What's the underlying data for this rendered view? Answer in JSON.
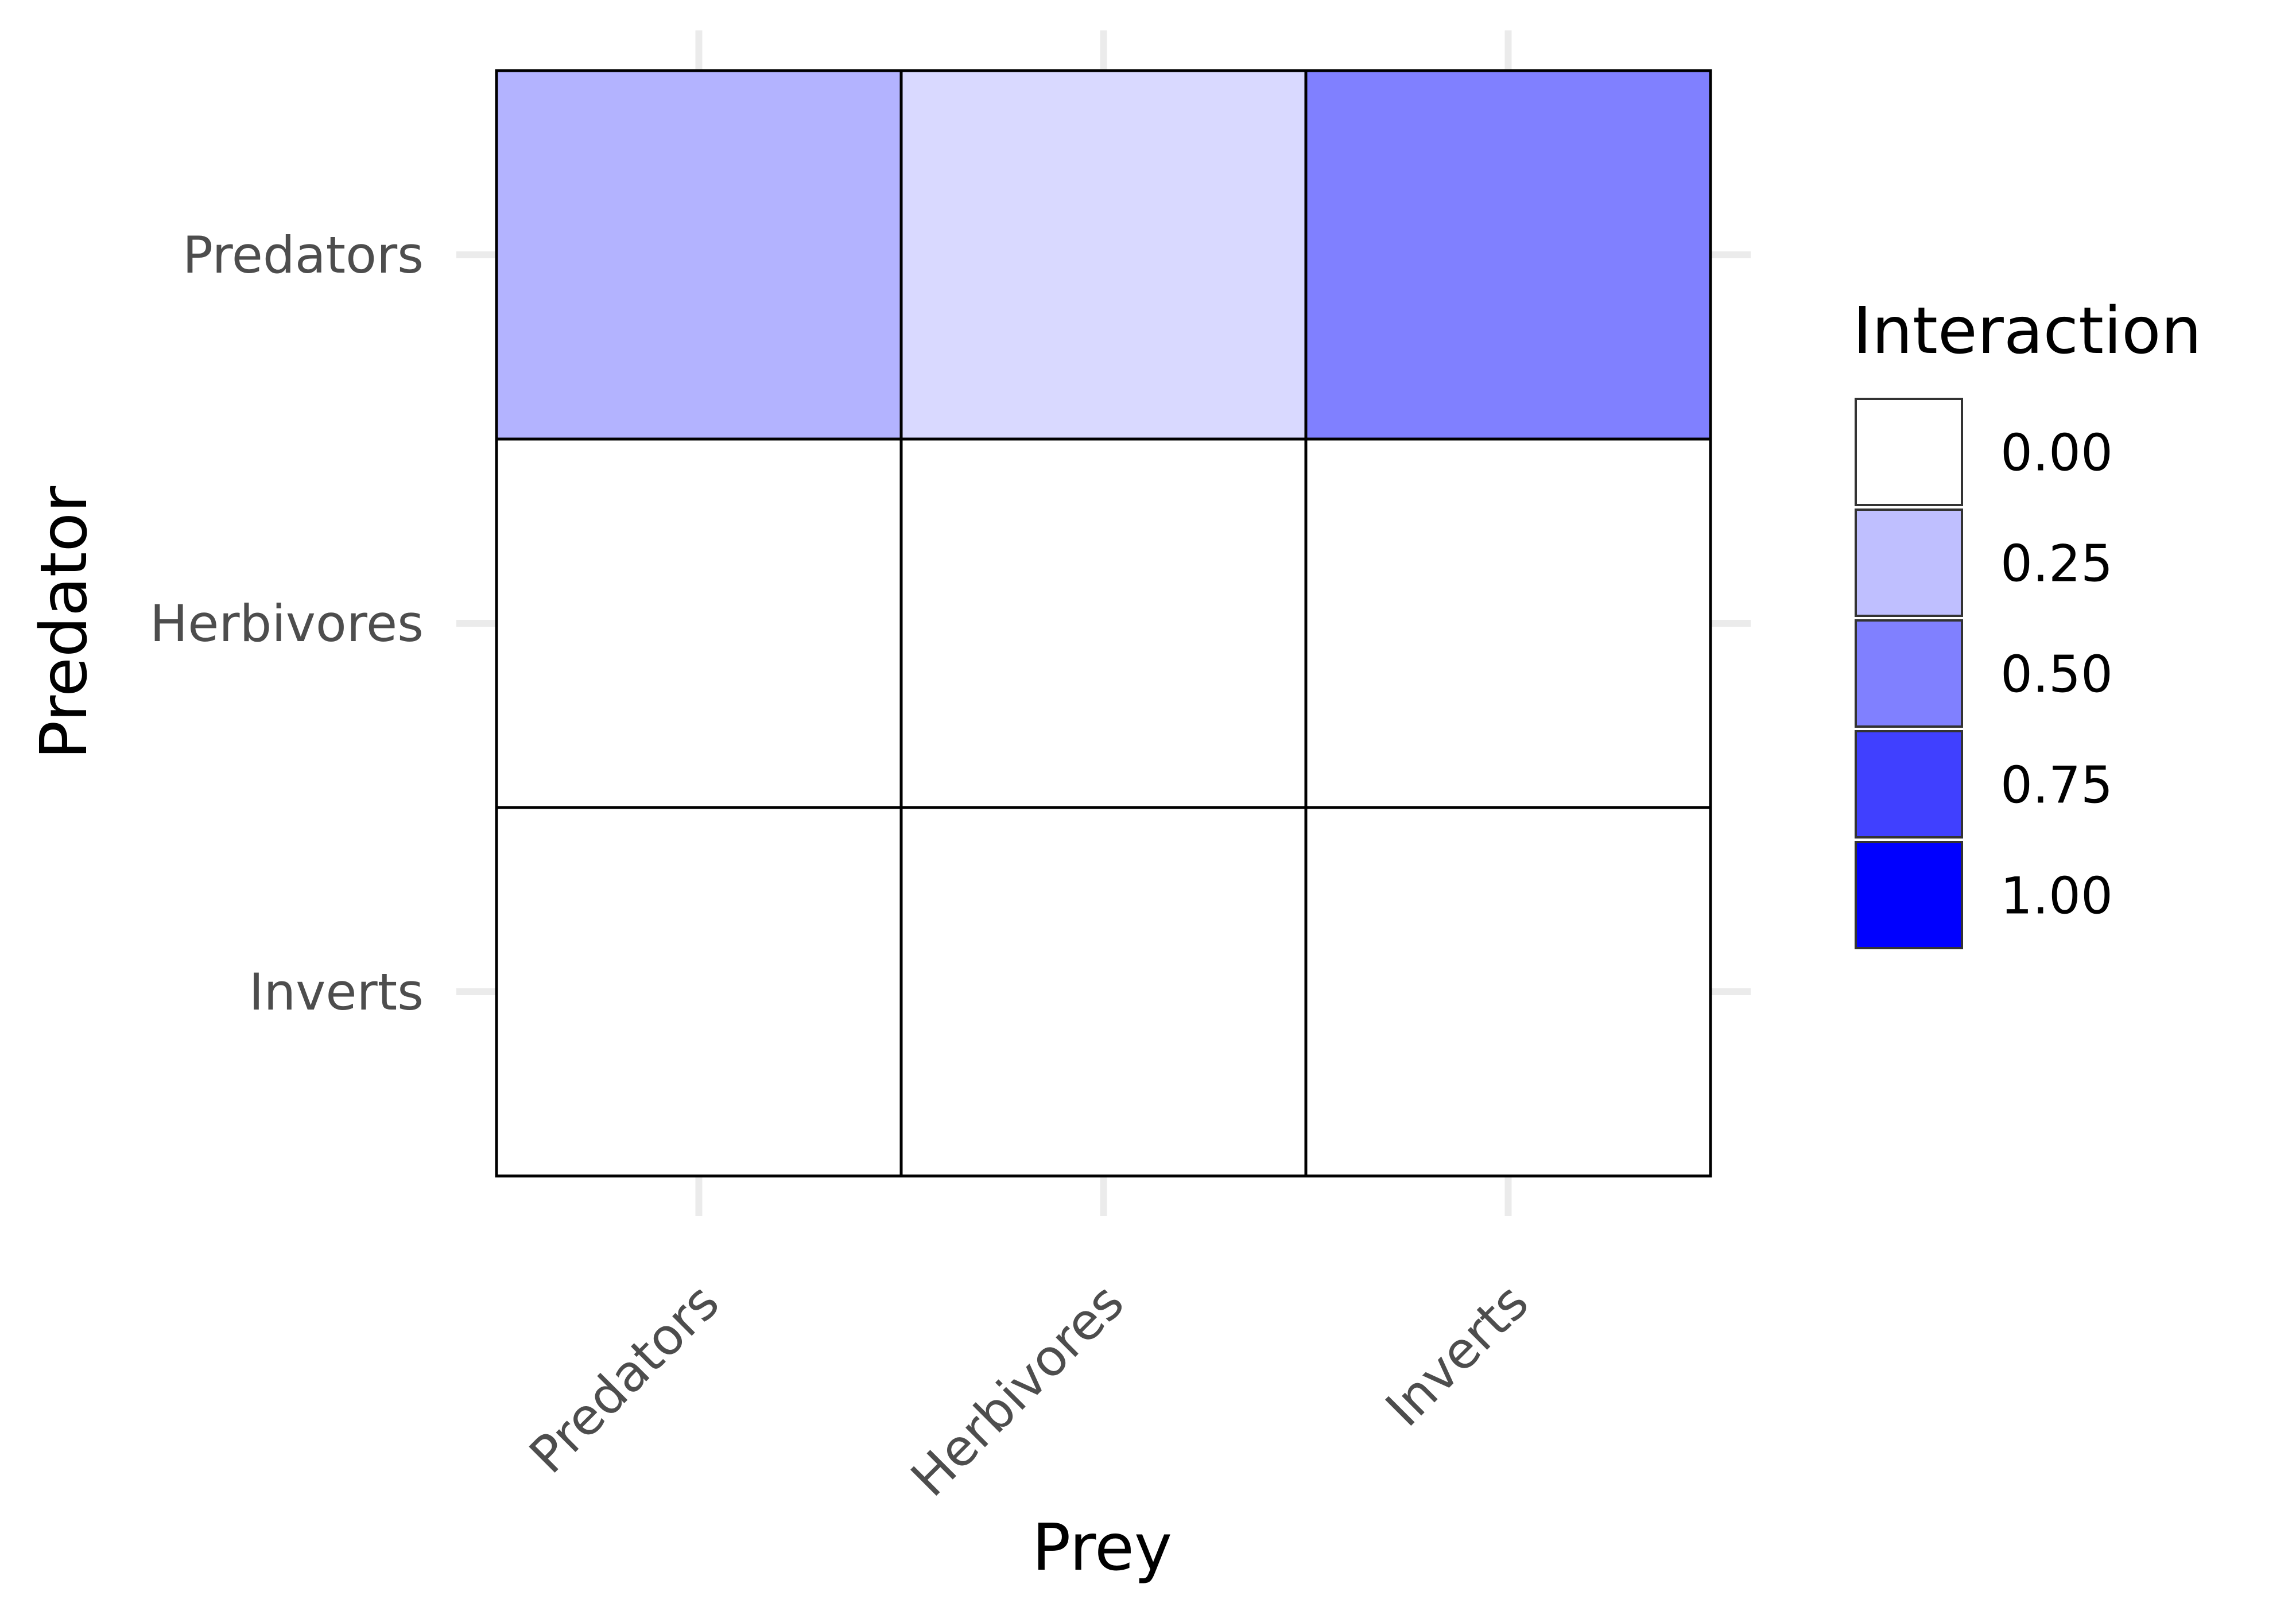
{
  "chart_data": {
    "type": "heatmap",
    "xlabel": "Prey",
    "ylabel": "Predator",
    "x_categories": [
      "Predators",
      "Herbivores",
      "Inverts"
    ],
    "y_categories": [
      "Predators",
      "Herbivores",
      "Inverts"
    ],
    "values": [
      [
        0.3,
        0.15,
        0.5
      ],
      [
        0,
        0,
        0
      ],
      [
        0,
        0,
        0
      ]
    ],
    "legend": {
      "title": "Interaction",
      "placement": "right",
      "breaks": [
        0,
        0.25,
        0.5,
        0.75,
        1
      ],
      "labels": [
        "0.00",
        "0.25",
        "0.50",
        "0.75",
        "1.00"
      ]
    },
    "color_low": "#ffffff",
    "color_high": "#0000ff",
    "grid": true
  }
}
